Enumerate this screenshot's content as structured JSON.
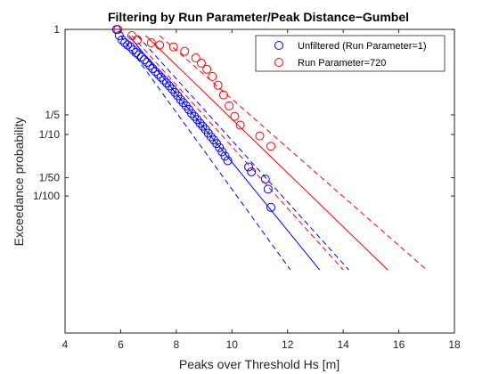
{
  "chart_data": {
    "type": "scatter",
    "title": "Filtering by Run Parameter/Peak Distance−Gumbel",
    "xlabel": "Peaks over Threshold Hs [m]",
    "ylabel": "Exceedance probability",
    "xlim": [
      4,
      18
    ],
    "x_ticks": [
      "4",
      "6",
      "8",
      "10",
      "12",
      "14",
      "16",
      "18"
    ],
    "y_scale": "gumbel (reduced variate of exceedance probability)",
    "y_ticks": [
      {
        "label": "1",
        "p": 0.997
      },
      {
        "label": "1/5",
        "p": 0.2
      },
      {
        "label": "1/10",
        "p": 0.1
      },
      {
        "label": "1/50",
        "p": 0.02
      },
      {
        "label": "1/100",
        "p": 0.01
      }
    ],
    "grid": false,
    "legend_position": "top-right",
    "series": [
      {
        "name": "Unfiltered (Run Parameter=1)",
        "color": "#0000ff",
        "marker": "circle",
        "points": [
          [
            5.85,
            0.997
          ],
          [
            5.95,
            0.99
          ],
          [
            6.05,
            0.98
          ],
          [
            6.15,
            0.97
          ],
          [
            6.25,
            0.96
          ],
          [
            6.35,
            0.95
          ],
          [
            6.45,
            0.93
          ],
          [
            6.55,
            0.91
          ],
          [
            6.65,
            0.89
          ],
          [
            6.75,
            0.87
          ],
          [
            6.85,
            0.84
          ],
          [
            6.95,
            0.81
          ],
          [
            7.05,
            0.77
          ],
          [
            7.15,
            0.73
          ],
          [
            7.25,
            0.69
          ],
          [
            7.35,
            0.65
          ],
          [
            7.45,
            0.61
          ],
          [
            7.55,
            0.57
          ],
          [
            7.65,
            0.53
          ],
          [
            7.75,
            0.49
          ],
          [
            7.85,
            0.45
          ],
          [
            7.95,
            0.41
          ],
          [
            8.05,
            0.37
          ],
          [
            8.15,
            0.33
          ],
          [
            8.25,
            0.3
          ],
          [
            8.35,
            0.27
          ],
          [
            8.45,
            0.24
          ],
          [
            8.55,
            0.21
          ],
          [
            8.65,
            0.19
          ],
          [
            8.75,
            0.17
          ],
          [
            8.85,
            0.15
          ],
          [
            8.95,
            0.135
          ],
          [
            9.05,
            0.12
          ],
          [
            9.15,
            0.105
          ],
          [
            9.25,
            0.092
          ],
          [
            9.35,
            0.082
          ],
          [
            9.45,
            0.072
          ],
          [
            9.55,
            0.062
          ],
          [
            9.65,
            0.053
          ],
          [
            9.75,
            0.045
          ],
          [
            9.85,
            0.038
          ],
          [
            10.6,
            0.03
          ],
          [
            10.7,
            0.025
          ],
          [
            11.2,
            0.019
          ],
          [
            11.3,
            0.013
          ],
          [
            11.4,
            0.0065
          ]
        ],
        "fit": {
          "x_at_p1": 6.3,
          "x_at_p_small": 13.15
        },
        "ci_lower": {
          "x_at_p1": 6.0,
          "x_at_p_small": 12.1
        },
        "ci_upper": {
          "x_at_p1": 6.6,
          "x_at_p_small": 14.2
        }
      },
      {
        "name": "Run Parameter=720",
        "color": "#ff0000",
        "marker": "circle",
        "points": [
          [
            5.9,
            0.997
          ],
          [
            6.4,
            0.99
          ],
          [
            6.6,
            0.98
          ],
          [
            7.1,
            0.97
          ],
          [
            7.4,
            0.96
          ],
          [
            7.9,
            0.95
          ],
          [
            8.3,
            0.92
          ],
          [
            8.7,
            0.86
          ],
          [
            8.9,
            0.8
          ],
          [
            9.1,
            0.72
          ],
          [
            9.3,
            0.62
          ],
          [
            9.5,
            0.5
          ],
          [
            9.7,
            0.38
          ],
          [
            9.9,
            0.27
          ],
          [
            10.1,
            0.19
          ],
          [
            10.3,
            0.14
          ],
          [
            11.0,
            0.095
          ],
          [
            11.4,
            0.065
          ]
        ],
        "fit": {
          "x_at_p1": 6.9,
          "x_at_p_small": 15.6
        },
        "ci_lower": {
          "x_at_p1": 6.4,
          "x_at_p_small": 14.0
        },
        "ci_upper": {
          "x_at_p1": 7.4,
          "x_at_p_small": 17.0
        }
      }
    ]
  }
}
